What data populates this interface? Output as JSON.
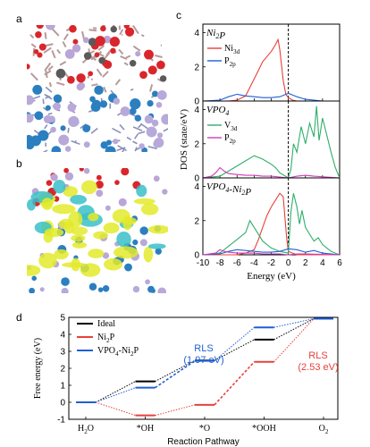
{
  "panels": {
    "a": "a",
    "b": "b",
    "c": "c",
    "d": "d"
  },
  "colors": {
    "ni_red": "#e8403a",
    "p_blue": "#1f5fd6",
    "v_green": "#2fae6a",
    "p_magenta": "#d23ab8",
    "black": "#000000"
  },
  "chart_data": [
    {
      "type": "line",
      "panel": "c",
      "ylabel": "DOS (state/eV)",
      "xlabel": "Energy (eV)",
      "xlim": [
        -10,
        6
      ],
      "x_ticks": [
        "-10",
        "-8",
        "-6",
        "-4",
        "-2",
        "0",
        "2",
        "4",
        "6"
      ],
      "fermi_level": 0,
      "subplots": [
        {
          "title": "Ni2P",
          "ylim": [
            0,
            4.5
          ],
          "y_ticks": [
            "0",
            "2",
            "4"
          ],
          "legend": [
            {
              "main": "Ni",
              "sub": "3d"
            },
            {
              "main": "P",
              "sub": "2p"
            }
          ],
          "series": [
            {
              "name": "Ni3d",
              "color": "#e8403a",
              "x": [
                -10,
                -7,
                -6,
                -5,
                -4.5,
                -4,
                -3.5,
                -3,
                -2.5,
                -2,
                -1.5,
                -1.2,
                -1,
                -0.6,
                -0.3,
                0,
                0.5,
                1,
                2,
                6
              ],
              "y": [
                0,
                0,
                0.05,
                0.3,
                0.8,
                1.3,
                1.8,
                2.3,
                2.6,
                2.9,
                3.3,
                3.6,
                3.0,
                1.2,
                0.4,
                0.2,
                0.05,
                0,
                0,
                0
              ]
            },
            {
              "name": "P2p",
              "color": "#1f5fd6",
              "x": [
                -10,
                -8,
                -7,
                -6,
                -5,
                -4,
                -3,
                -2,
                -1,
                0,
                1,
                2,
                3,
                4,
                5,
                6
              ],
              "y": [
                0,
                0.05,
                0.25,
                0.4,
                0.3,
                0.25,
                0.2,
                0.2,
                0.25,
                0.45,
                0.25,
                0.1,
                0.05,
                0,
                0,
                0
              ]
            }
          ]
        },
        {
          "title": "VPO4",
          "ylim": [
            0,
            4.5
          ],
          "y_ticks": [
            "0",
            "2",
            "4"
          ],
          "legend": [
            {
              "main": "V",
              "sub": "3d"
            },
            {
              "main": "P",
              "sub": "2p"
            }
          ],
          "series": [
            {
              "name": "V3d",
              "color": "#2fae6a",
              "x": [
                -10,
                -8,
                -7,
                -6,
                -5,
                -4,
                -3,
                -2,
                -1.5,
                -1,
                0,
                0.3,
                0.6,
                1,
                1.5,
                2,
                2.5,
                3,
                3.3,
                3.6,
                4,
                4.5,
                5,
                5.5,
                6
              ],
              "y": [
                0,
                0.1,
                0.4,
                0.7,
                1.0,
                1.3,
                1.1,
                0.8,
                0.6,
                0.3,
                0,
                0.5,
                2.0,
                1.5,
                3.0,
                2.0,
                3.2,
                2.4,
                4.2,
                2.2,
                3.5,
                2.5,
                1.5,
                0.6,
                0
              ]
            },
            {
              "name": "P2p",
              "color": "#d23ab8",
              "x": [
                -10,
                -9,
                -8.5,
                -8,
                -7.5,
                -7,
                -6,
                -5,
                -4,
                -3,
                -2,
                -1,
                0,
                1,
                2,
                3,
                6
              ],
              "y": [
                0,
                0.1,
                0.3,
                0.6,
                0.4,
                0.25,
                0.2,
                0.15,
                0.15,
                0.1,
                0.1,
                0.05,
                0,
                0.1,
                0.15,
                0.1,
                0
              ]
            }
          ]
        },
        {
          "title": "VPO4-Ni2P",
          "ylim": [
            0,
            4.5
          ],
          "y_ticks": [
            "0",
            "2",
            "4"
          ],
          "legend": [],
          "series": [
            {
              "name": "Ni3d",
              "color": "#e8403a",
              "x": [
                -10,
                -6,
                -5,
                -4,
                -3.5,
                -3,
                -2.5,
                -2,
                -1.5,
                -1,
                -0.6,
                -0.2,
                0,
                0.5,
                1,
                6
              ],
              "y": [
                0,
                0,
                0.1,
                0.3,
                0.9,
                1.6,
                2.3,
                2.8,
                3.2,
                3.6,
                3.4,
                1.0,
                0.2,
                0.1,
                0,
                0
              ]
            },
            {
              "name": "V3d",
              "color": "#2fae6a",
              "x": [
                -10,
                -8,
                -7,
                -6,
                -5,
                -4.5,
                -4,
                -3.5,
                -3,
                -2,
                -1,
                0,
                0.3,
                0.6,
                1,
                1.3,
                1.6,
                2,
                2.5,
                3,
                3.5,
                4,
                4.5,
                5,
                6
              ],
              "y": [
                0,
                0.1,
                0.5,
                0.9,
                1.3,
                2.0,
                1.6,
                1.2,
                0.8,
                0.4,
                0.2,
                0.1,
                2.5,
                3.6,
                2.8,
                1.8,
                2.6,
                1.6,
                1.2,
                0.8,
                1.0,
                0.6,
                0.4,
                0.2,
                0
              ]
            },
            {
              "name": "P2p",
              "color": "#1f5fd6",
              "x": [
                -10,
                -8,
                -7,
                -6,
                -5,
                -4,
                -3,
                -2,
                -1,
                0,
                1,
                2,
                3,
                4,
                6
              ],
              "y": [
                0,
                0.05,
                0.2,
                0.3,
                0.25,
                0.2,
                0.15,
                0.15,
                0.2,
                0.35,
                0.3,
                0.15,
                0.25,
                0.1,
                0
              ]
            },
            {
              "name": "P2p",
              "color": "#d23ab8",
              "x": [
                -10,
                -8.5,
                -8,
                -7.5,
                -7,
                -6,
                -5,
                -4,
                -3,
                -2,
                -1,
                0,
                1,
                2,
                6
              ],
              "y": [
                0,
                0.1,
                0.3,
                0.2,
                0.15,
                0.1,
                0.1,
                0.1,
                0.05,
                0.05,
                0.05,
                0,
                0.05,
                0.05,
                0
              ]
            }
          ]
        }
      ]
    },
    {
      "type": "line",
      "panel": "d",
      "ylabel": "Free energy (eV)",
      "xlabel": "Reaction Pathway",
      "ylim": [
        -1,
        5
      ],
      "y_ticks": [
        "-1",
        "0",
        "1",
        "2",
        "3",
        "4",
        "5"
      ],
      "categories": [
        {
          "main": "H",
          "sub": "2",
          "tail": "O"
        },
        {
          "main": "*OH",
          "sub": "",
          "tail": ""
        },
        {
          "main": "*O",
          "sub": "",
          "tail": ""
        },
        {
          "main": "*OOH",
          "sub": "",
          "tail": ""
        },
        {
          "main": "O",
          "sub": "2",
          "tail": ""
        }
      ],
      "legend": [
        {
          "main": "Ideal",
          "sub": "",
          "tail": ""
        },
        {
          "main": "Ni",
          "sub": "2",
          "tail": "P"
        },
        {
          "main": "VPO",
          "sub": "4",
          "tail": "-Ni",
          "sub2": "2",
          "tail2": "P"
        }
      ],
      "series": [
        {
          "name": "Ideal",
          "color": "#000000",
          "values": [
            0,
            1.23,
            2.46,
            3.69,
            4.92
          ]
        },
        {
          "name": "Ni2P",
          "color": "#e8403a",
          "values": [
            0,
            -0.77,
            -0.15,
            2.38,
            4.92
          ]
        },
        {
          "name": "VPO4-Ni2P",
          "color": "#1f5fd6",
          "values": [
            0,
            0.86,
            2.44,
            4.41,
            4.92
          ]
        }
      ],
      "annotations": [
        {
          "lines": [
            "RLS",
            "(1.97 eV)"
          ],
          "color": "#1f5fd6"
        },
        {
          "lines": [
            "RLS",
            "(2.53 eV)"
          ],
          "color": "#e8403a"
        }
      ]
    }
  ]
}
